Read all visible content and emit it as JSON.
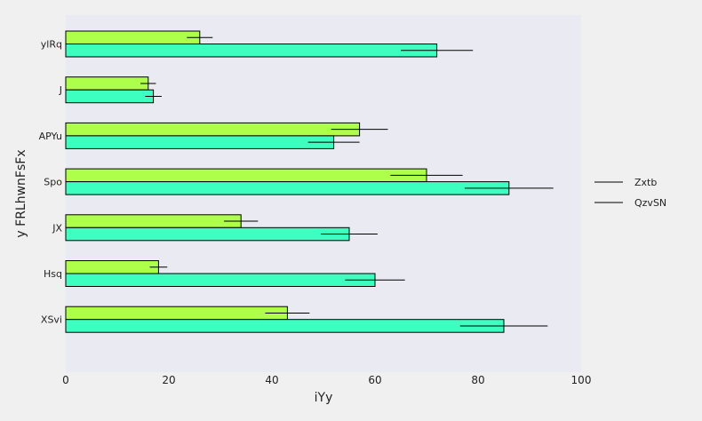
{
  "chart_data": {
    "type": "bar",
    "orientation": "horizontal",
    "categories": [
      "ylRq",
      "J",
      "APYu",
      "Spo",
      "JX",
      "Hsq",
      "XSvi"
    ],
    "series": [
      {
        "name": "Zxtb",
        "color": "#adff4a",
        "values": [
          26,
          16,
          57,
          70,
          34,
          18,
          43
        ],
        "errors": [
          2.5,
          1.5,
          5.5,
          7,
          3.3,
          1.7,
          4.3
        ]
      },
      {
        "name": "QzvSN",
        "color": "#3dffc0",
        "values": [
          72,
          17,
          52,
          86,
          55,
          60,
          85
        ],
        "errors": [
          7,
          1.6,
          5,
          8.6,
          5.5,
          5.8,
          8.5
        ]
      }
    ],
    "xlabel": "iYy",
    "ylabel": "y FRLhwnFsFx",
    "xlim": [
      0,
      100
    ],
    "xticks": [
      "0",
      "20",
      "40",
      "60",
      "80",
      "100"
    ],
    "grid": false,
    "legend_position": "right",
    "plot_background": "#eaeaf2",
    "figure_background": "#f0f0f0"
  }
}
